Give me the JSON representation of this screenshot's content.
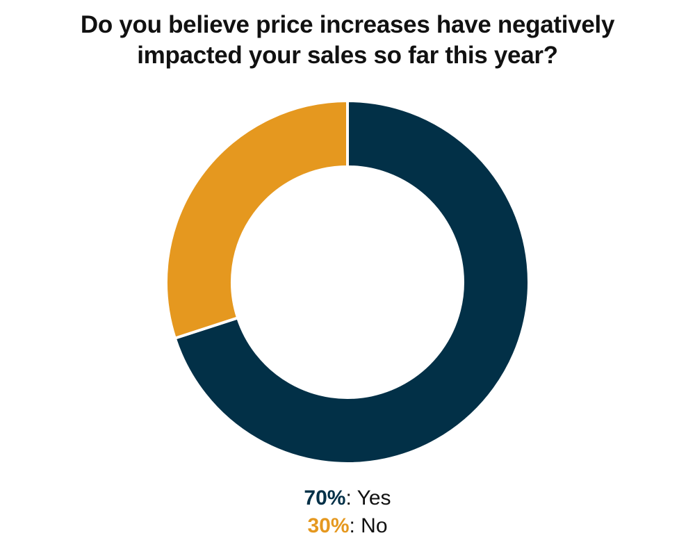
{
  "title": {
    "line1": "Do you believe price increases have negatively",
    "line2": "impacted your sales so far this year?"
  },
  "colors": {
    "yes": "#023047",
    "no": "#E5981F",
    "separator": "#ffffff"
  },
  "legend": [
    {
      "pct": "70%",
      "sep": ": ",
      "label": "Yes"
    },
    {
      "pct": "30%",
      "sep": ": ",
      "label": "No"
    }
  ],
  "chart_data": {
    "type": "pie",
    "title": "Do you believe price increases have negatively impacted your sales so far this year?",
    "categories": [
      "Yes",
      "No"
    ],
    "values": [
      70,
      30
    ],
    "unit": "%",
    "style": "donut",
    "legend_placement": "bottom"
  }
}
